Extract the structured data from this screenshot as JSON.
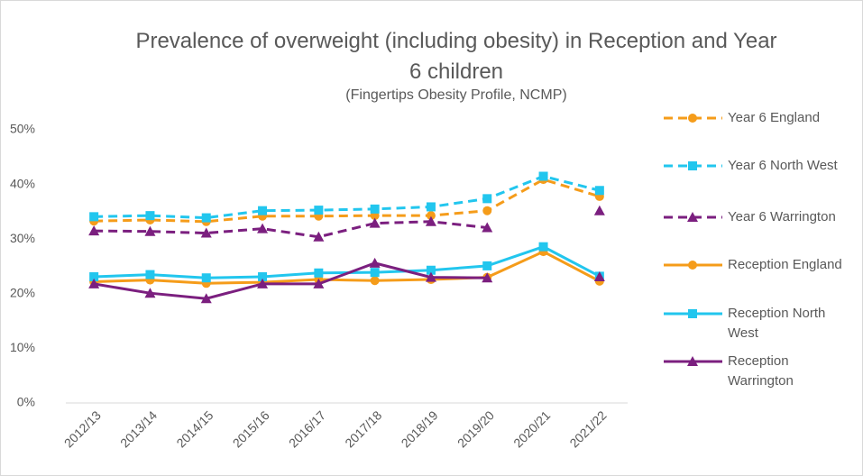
{
  "chart_data": {
    "type": "line",
    "title": "Prevalence of overweight (including obesity) in Reception and Year 6 children",
    "subtitle": "(Fingertips Obesity Profile, NCMP)",
    "categories": [
      "2012/13",
      "2013/14",
      "2014/15",
      "2015/16",
      "2016/17",
      "2017/18",
      "2018/19",
      "2019/20",
      "2020/21",
      "2021/22"
    ],
    "series": [
      {
        "name": "Year 6 England",
        "color": "#f59c1a",
        "dashed": true,
        "marker": "circle",
        "values": [
          33.3,
          33.5,
          33.2,
          34.2,
          34.2,
          34.3,
          34.3,
          35.2,
          40.9,
          37.8
        ]
      },
      {
        "name": "Year 6 North West",
        "color": "#22c6ee",
        "dashed": true,
        "marker": "square",
        "values": [
          34.1,
          34.3,
          33.9,
          35.2,
          35.3,
          35.5,
          35.9,
          37.4,
          41.5,
          38.9
        ]
      },
      {
        "name": "Year 6 Warrington",
        "color": "#7b1f7f",
        "dashed": true,
        "marker": "triangle",
        "values": [
          31.5,
          31.4,
          31.1,
          31.9,
          30.4,
          32.9,
          33.2,
          32.1,
          null,
          35.2
        ]
      },
      {
        "name": "Reception England",
        "color": "#f59c1a",
        "dashed": false,
        "marker": "circle",
        "values": [
          22.2,
          22.5,
          21.9,
          22.1,
          22.6,
          22.4,
          22.6,
          23.0,
          27.7,
          22.3
        ]
      },
      {
        "name": "Reception North West",
        "color": "#22c6ee",
        "dashed": false,
        "marker": "square",
        "values": [
          23.1,
          23.5,
          22.9,
          23.1,
          23.8,
          23.9,
          24.3,
          25.1,
          28.6,
          23.2
        ]
      },
      {
        "name": "Reception Warrington",
        "color": "#7b1f7f",
        "dashed": false,
        "marker": "triangle",
        "values": [
          21.8,
          20.1,
          19.1,
          21.8,
          21.8,
          25.6,
          23.0,
          22.9,
          null,
          23.1
        ]
      }
    ],
    "ylim": [
      0,
      50
    ],
    "yticks": [
      {
        "value": 0,
        "label": "0%"
      },
      {
        "value": 10,
        "label": "10%"
      },
      {
        "value": 20,
        "label": "20%"
      },
      {
        "value": 30,
        "label": "30%"
      },
      {
        "value": 40,
        "label": "40%"
      },
      {
        "value": 50,
        "label": "50%"
      }
    ],
    "grid": false,
    "legend": "right"
  }
}
